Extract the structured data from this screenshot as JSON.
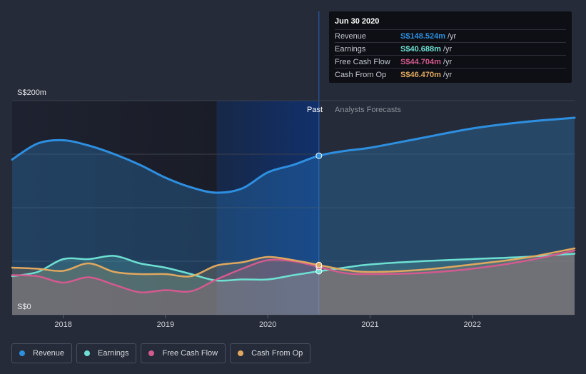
{
  "chart_data": {
    "type": "area",
    "y_axis": {
      "top_label": "S$200m",
      "bottom_label": "S$0",
      "ylim": [
        0,
        200
      ],
      "grid_step": 50
    },
    "x_axis": {
      "ticks": [
        "2018",
        "2019",
        "2020",
        "2021",
        "2022"
      ],
      "tick_values": [
        2018,
        2019,
        2020,
        2021,
        2022
      ],
      "xlim": [
        2017.5,
        2023.0
      ]
    },
    "regions": {
      "past_label": "Past",
      "forecast_label": "Analysts Forecasts",
      "past_highlight_start": 2019.5,
      "split": 2020.5
    },
    "series": [
      {
        "name": "Revenue",
        "color": "#2e8fe0",
        "x": [
          2017.5,
          2017.75,
          2018.0,
          2018.25,
          2018.5,
          2018.75,
          2019.0,
          2019.25,
          2019.5,
          2019.75,
          2020.0,
          2020.25,
          2020.5,
          2020.75,
          2021.0,
          2021.5,
          2022.0,
          2022.5,
          2023.0
        ],
        "values": [
          145,
          160,
          163,
          158,
          150,
          140,
          128,
          119,
          114,
          118,
          133,
          140,
          148.524,
          153,
          156,
          165,
          174,
          180,
          184
        ]
      },
      {
        "name": "Earnings",
        "color": "#6ee0d3",
        "x": [
          2017.5,
          2017.75,
          2018.0,
          2018.25,
          2018.5,
          2018.75,
          2019.0,
          2019.25,
          2019.5,
          2019.75,
          2020.0,
          2020.25,
          2020.5,
          2020.75,
          2021.0,
          2021.5,
          2022.0,
          2022.5,
          2023.0
        ],
        "values": [
          36,
          40,
          52,
          52,
          55,
          48,
          44,
          38,
          32,
          33,
          33,
          37,
          40.688,
          44,
          47,
          50,
          52,
          54,
          57
        ]
      },
      {
        "name": "Free Cash Flow",
        "color": "#d35a8e",
        "x": [
          2017.5,
          2017.75,
          2018.0,
          2018.25,
          2018.5,
          2018.75,
          2019.0,
          2019.25,
          2019.5,
          2019.75,
          2020.0,
          2020.25,
          2020.5,
          2020.75,
          2021.0,
          2021.5,
          2022.0,
          2022.5,
          2023.0
        ],
        "values": [
          37,
          36,
          30,
          35,
          28,
          21,
          23,
          22,
          33,
          43,
          51,
          50,
          44.704,
          39,
          38,
          39,
          43,
          50,
          60
        ]
      },
      {
        "name": "Cash From Op",
        "color": "#e0a85f",
        "x": [
          2017.5,
          2017.75,
          2018.0,
          2018.25,
          2018.5,
          2018.75,
          2019.0,
          2019.25,
          2019.5,
          2019.75,
          2020.0,
          2020.25,
          2020.5,
          2020.75,
          2021.0,
          2021.5,
          2022.0,
          2022.5,
          2023.0
        ],
        "values": [
          44,
          43,
          41,
          48,
          40,
          38,
          38,
          36,
          46,
          49,
          54,
          51,
          46.47,
          42,
          40,
          42,
          47,
          53,
          62
        ]
      }
    ]
  },
  "tooltip": {
    "date": "Jun 30 2020",
    "rows": [
      {
        "name": "Revenue",
        "value": "S$148.524m",
        "unit": "/yr",
        "color": "#2e8fe0"
      },
      {
        "name": "Earnings",
        "value": "S$40.688m",
        "unit": "/yr",
        "color": "#6ee0d3"
      },
      {
        "name": "Free Cash Flow",
        "value": "S$44.704m",
        "unit": "/yr",
        "color": "#d35a8e"
      },
      {
        "name": "Cash From Op",
        "value": "S$46.470m",
        "unit": "/yr",
        "color": "#e0a85f"
      }
    ]
  },
  "legend": [
    {
      "label": "Revenue",
      "color": "#2e8fe0"
    },
    {
      "label": "Earnings",
      "color": "#6ee0d3"
    },
    {
      "label": "Free Cash Flow",
      "color": "#d35a8e"
    },
    {
      "label": "Cash From Op",
      "color": "#e0a85f"
    }
  ]
}
